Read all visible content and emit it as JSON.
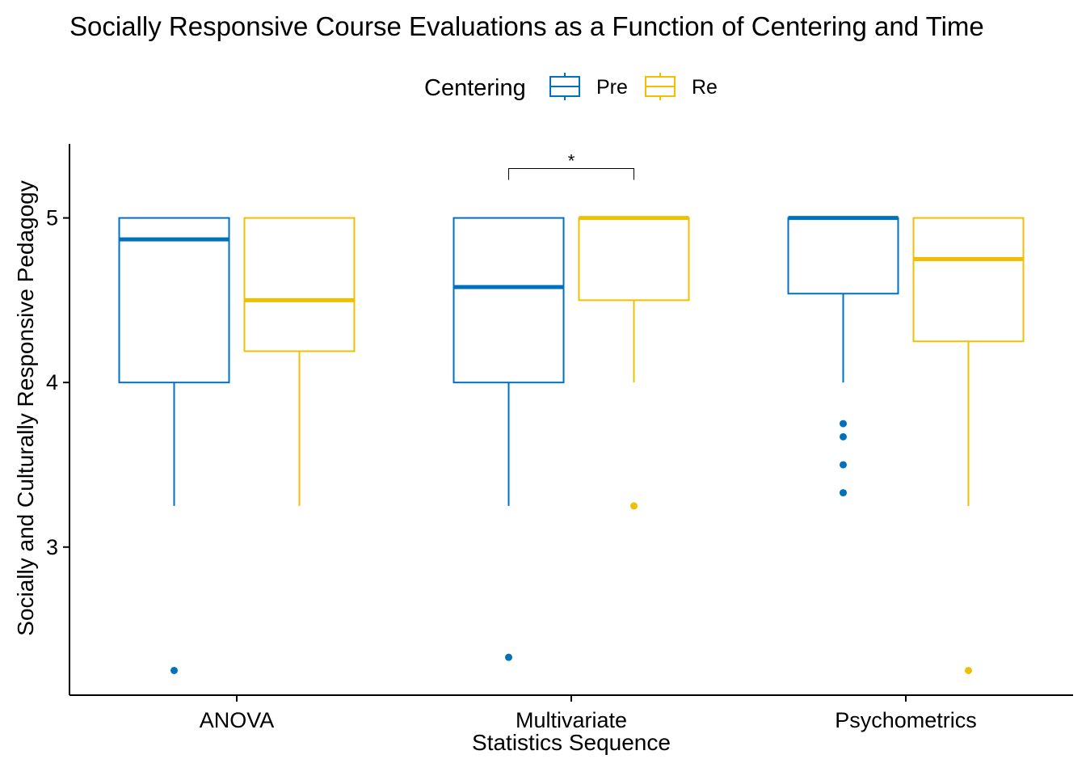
{
  "chart_data": {
    "type": "boxplot",
    "title": "Socially Responsive Course Evaluations as a Function of Centering and Time",
    "xlabel_lines": [
      "",
      "Statistics Sequence"
    ],
    "ylabel": "Socially and Culturally Responsive Pedagogy",
    "categories": [
      "ANOVA",
      "Multivariate",
      "Psychometrics"
    ],
    "ylim": [
      2.1,
      5.45
    ],
    "yticks": [
      3,
      4,
      5
    ],
    "grid": false,
    "legend": {
      "title": "Centering",
      "position": "top",
      "entries": [
        "Pre",
        "Re"
      ]
    },
    "series": [
      {
        "name": "Pre",
        "color": "#0072bd",
        "boxes": [
          {
            "category": "ANOVA",
            "q1": 4.0,
            "median": 4.87,
            "q3": 5.0,
            "whisker_low": 3.25,
            "whisker_high": 5.0,
            "outliers": [
              2.25
            ]
          },
          {
            "category": "Multivariate",
            "q1": 4.0,
            "median": 4.58,
            "q3": 5.0,
            "whisker_low": 3.25,
            "whisker_high": 5.0,
            "outliers": [
              2.33
            ]
          },
          {
            "category": "Psychometrics",
            "q1": 4.54,
            "median": 5.0,
            "q3": 5.0,
            "whisker_low": 4.0,
            "whisker_high": 5.0,
            "outliers": [
              3.75,
              3.67,
              3.5,
              3.33
            ]
          }
        ]
      },
      {
        "name": "Re",
        "color": "#efc000",
        "boxes": [
          {
            "category": "ANOVA",
            "q1": 4.19,
            "median": 4.5,
            "q3": 5.0,
            "whisker_low": 3.25,
            "whisker_high": 5.0,
            "outliers": []
          },
          {
            "category": "Multivariate",
            "q1": 4.5,
            "median": 5.0,
            "q3": 5.0,
            "whisker_low": 4.0,
            "whisker_high": 5.0,
            "outliers": [
              3.25
            ]
          },
          {
            "category": "Psychometrics",
            "q1": 4.25,
            "median": 4.75,
            "q3": 5.0,
            "whisker_low": 3.25,
            "whisker_high": 5.0,
            "outliers": [
              2.25
            ]
          }
        ]
      }
    ],
    "annotations": [
      {
        "category": "Multivariate",
        "label": "*",
        "y": 5.3
      }
    ]
  }
}
